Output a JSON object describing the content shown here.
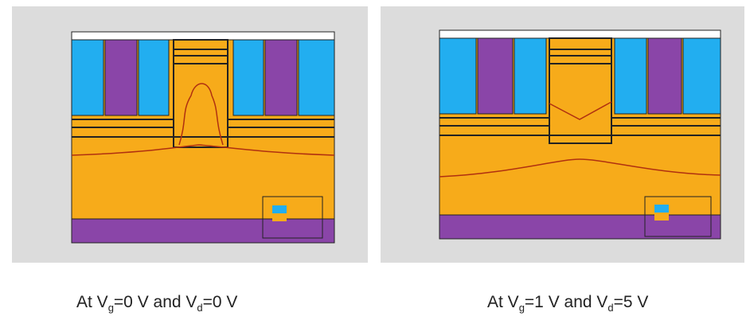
{
  "panels": [
    {
      "caption": [
        "At V",
        "g",
        "=0 V and V",
        "d",
        "=0 V"
      ]
    },
    {
      "caption": [
        "At V",
        "g",
        "=1 V and V",
        "d",
        "=5 V"
      ]
    }
  ]
}
